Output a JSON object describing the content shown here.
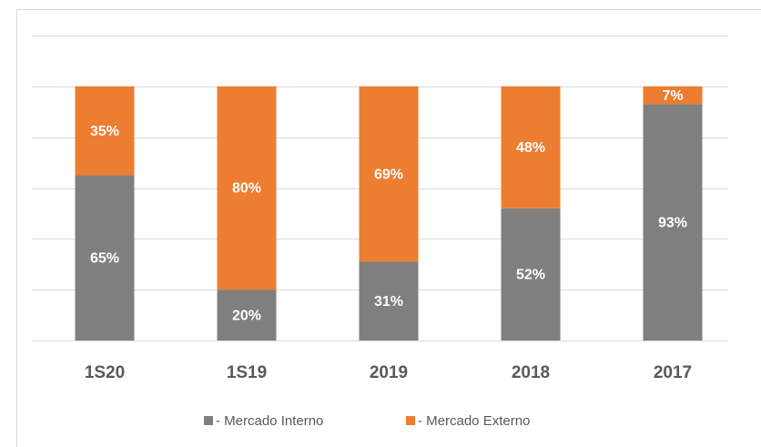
{
  "chart_data": {
    "type": "stacked_bar",
    "categories": [
      "1S20",
      "1S19",
      "2019",
      "2018",
      "2017"
    ],
    "series": [
      {
        "name": "- Mercado Interno",
        "color": "#7f7f7f",
        "values": [
          65,
          20,
          31,
          52,
          93
        ],
        "value_labels": [
          "65%",
          "20%",
          "31%",
          "52%",
          "93%"
        ]
      },
      {
        "name": "- Mercado Externo",
        "color": "#ed7d31",
        "values": [
          35,
          80,
          69,
          48,
          7
        ],
        "value_labels": [
          "35%",
          "80%",
          "69%",
          "48%",
          "7%"
        ]
      }
    ],
    "ylim": [
      0,
      120
    ],
    "yticks": [
      0,
      20,
      40,
      60,
      80,
      100,
      120
    ],
    "grid": true,
    "legend": "bottom"
  }
}
